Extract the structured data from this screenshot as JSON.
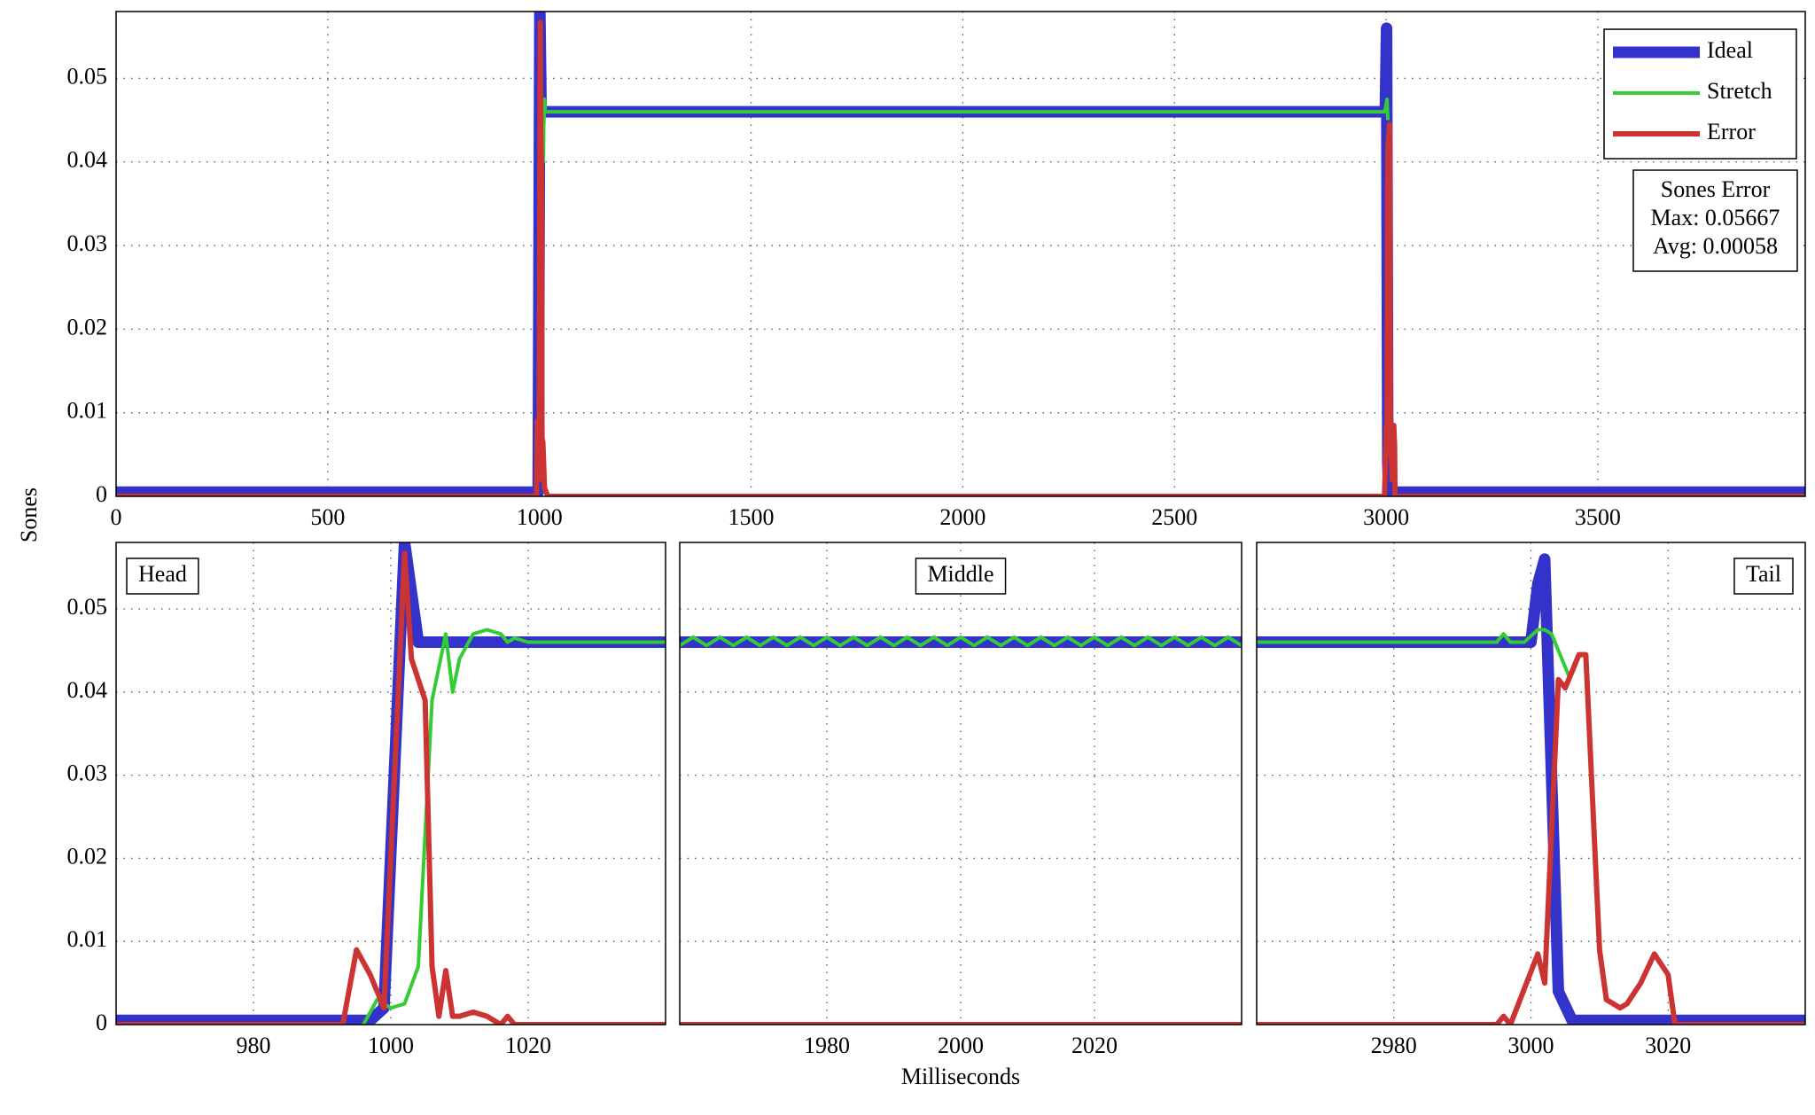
{
  "chart_data": [
    {
      "type": "line",
      "ylabel": "Sones",
      "xlim": [
        0,
        3990
      ],
      "xticks": [
        0,
        500,
        1000,
        1500,
        2000,
        2500,
        3000,
        3500
      ],
      "ylim": [
        0,
        0.058
      ],
      "yticks": [
        0,
        0.01,
        0.02,
        0.03,
        0.04,
        0.05
      ],
      "grid": true,
      "legend": "upper right",
      "annotation": [
        "Sones Error",
        "Max: 0.05667",
        "Avg: 0.00058"
      ],
      "series": [
        {
          "name": "Ideal",
          "color": "#3333cc",
          "line_width": 13,
          "x": [
            0,
            997,
            1001,
            1004,
            1006,
            2998,
            3001,
            3004,
            3006,
            3990
          ],
          "values": [
            0.0005,
            0.0005,
            0.058,
            0.046,
            0.046,
            0.046,
            0.056,
            0.004,
            0.0005,
            0.0005
          ]
        },
        {
          "name": "Stretch",
          "color": "#33cc33",
          "line_width": 4,
          "x": [
            1006,
            1008,
            1009,
            1010,
            1012,
            1014,
            2996,
            2999,
            3002,
            3004
          ],
          "values": [
            0.039,
            0.047,
            0.04,
            0.044,
            0.0475,
            0.046,
            0.046,
            0.0465,
            0.0475,
            0.045
          ]
        },
        {
          "name": "Error",
          "color": "#cc3333",
          "line_width": 6,
          "x": [
            0,
            993,
            995,
            999,
            1002,
            1003,
            1005,
            1006,
            1008,
            1012,
            1020,
            2996,
            3001,
            3002,
            3004,
            3008,
            3010,
            3014,
            3018,
            3020,
            3021,
            3990
          ],
          "values": [
            0,
            0,
            0.009,
            0.002,
            0.0567,
            0.044,
            0.039,
            0.007,
            0.0065,
            0.001,
            0,
            0,
            0.0085,
            0.005,
            0.0415,
            0.0445,
            0.009,
            0.002,
            0.0085,
            0.006,
            0,
            0
          ]
        }
      ]
    },
    {
      "type": "line",
      "title": "Head",
      "xlim": [
        960,
        1040
      ],
      "xticks": [
        980,
        1000,
        1020
      ],
      "ylim": [
        0,
        0.058
      ],
      "yticks": [
        0,
        0.01,
        0.02,
        0.03,
        0.04,
        0.05
      ],
      "grid": true,
      "ytick_labels": true,
      "series": [
        {
          "color": "#3333cc",
          "line_width": 13,
          "x": [
            960,
            997,
            999,
            1002,
            1004,
            1040
          ],
          "values": [
            0.0005,
            0.0005,
            0.002,
            0.058,
            0.046,
            0.046
          ]
        },
        {
          "color": "#33cc33",
          "line_width": 4,
          "x": [
            996,
            998,
            1000,
            1002,
            1004,
            1006,
            1008,
            1009,
            1010,
            1012,
            1014,
            1016,
            1017,
            1018,
            1020,
            1040
          ],
          "values": [
            0,
            0.003,
            0.002,
            0.0025,
            0.007,
            0.039,
            0.047,
            0.04,
            0.044,
            0.047,
            0.0475,
            0.047,
            0.046,
            0.0465,
            0.046,
            0.046
          ]
        },
        {
          "color": "#cc3333",
          "line_width": 6,
          "x": [
            960,
            993,
            995,
            997,
            999,
            1002,
            1003,
            1005,
            1006,
            1007,
            1008,
            1009,
            1010,
            1012,
            1014,
            1016,
            1017,
            1018,
            1040
          ],
          "values": [
            0,
            0,
            0.009,
            0.006,
            0.002,
            0.0567,
            0.044,
            0.039,
            0.007,
            0.001,
            0.0065,
            0.001,
            0.001,
            0.0015,
            0.001,
            0,
            0.001,
            0,
            0
          ]
        }
      ]
    },
    {
      "type": "line",
      "title": "Middle",
      "xlabel": "Milliseconds",
      "xlim": [
        1958,
        2042
      ],
      "xticks": [
        1980,
        2000,
        2020
      ],
      "ylim": [
        0,
        0.058
      ],
      "yticks": [
        0,
        0.01,
        0.02,
        0.03,
        0.04,
        0.05
      ],
      "grid": true,
      "ytick_labels": false,
      "series": [
        {
          "color": "#3333cc",
          "line_width": 13,
          "x": [
            1958,
            2042
          ],
          "values": [
            0.046,
            0.046
          ]
        },
        {
          "color": "#33cc33",
          "line_width": 4,
          "x": [
            1958,
            1960,
            1962,
            1964,
            1966,
            1968,
            1970,
            1972,
            1974,
            1976,
            1978,
            1980,
            1982,
            1984,
            1986,
            1988,
            1990,
            1992,
            1994,
            1996,
            1998,
            2000,
            2002,
            2004,
            2006,
            2008,
            2010,
            2012,
            2014,
            2016,
            2018,
            2020,
            2022,
            2024,
            2026,
            2028,
            2030,
            2032,
            2034,
            2036,
            2038,
            2040,
            2042
          ],
          "values": [
            0.0456,
            0.0466,
            0.0456,
            0.0466,
            0.0456,
            0.0466,
            0.0456,
            0.0466,
            0.0456,
            0.0466,
            0.0456,
            0.0466,
            0.0456,
            0.0466,
            0.0456,
            0.0466,
            0.0456,
            0.0466,
            0.0456,
            0.0466,
            0.0456,
            0.0466,
            0.0456,
            0.0466,
            0.0456,
            0.0466,
            0.0456,
            0.0466,
            0.0456,
            0.0466,
            0.0456,
            0.0466,
            0.0456,
            0.0466,
            0.0456,
            0.0466,
            0.0456,
            0.0466,
            0.0456,
            0.0466,
            0.0456,
            0.0466,
            0.0456
          ]
        },
        {
          "color": "#cc3333",
          "line_width": 6,
          "x": [
            1958,
            2042
          ],
          "values": [
            0,
            0
          ]
        }
      ]
    },
    {
      "type": "line",
      "title": "Tail",
      "xlim": [
        2960,
        3040
      ],
      "xticks": [
        2980,
        3000,
        3020
      ],
      "ylim": [
        0,
        0.058
      ],
      "yticks": [
        0,
        0.01,
        0.02,
        0.03,
        0.04,
        0.05
      ],
      "grid": true,
      "ytick_labels": false,
      "series": [
        {
          "color": "#3333cc",
          "line_width": 13,
          "x": [
            2960,
            3000,
            3001,
            3002,
            3004,
            3006,
            3040
          ],
          "values": [
            0.046,
            0.046,
            0.053,
            0.056,
            0.004,
            0.0005,
            0.0005
          ]
        },
        {
          "color": "#33cc33",
          "line_width": 4,
          "x": [
            2960,
            2995,
            2996,
            2997,
            2999,
            3001,
            3002,
            3003,
            3004,
            3005.5
          ],
          "values": [
            0.046,
            0.046,
            0.047,
            0.046,
            0.046,
            0.0475,
            0.0475,
            0.047,
            0.045,
            0.042
          ]
        },
        {
          "color": "#cc3333",
          "line_width": 6,
          "x": [
            2960,
            2995,
            2996,
            2997,
            3001,
            3002,
            3004,
            3005,
            3007,
            3008,
            3010,
            3011,
            3013,
            3014,
            3016,
            3018,
            3020,
            3021,
            3040
          ],
          "values": [
            0,
            0,
            0.001,
            0,
            0.0085,
            0.005,
            0.0415,
            0.0405,
            0.0445,
            0.0445,
            0.009,
            0.003,
            0.002,
            0.0025,
            0.005,
            0.0085,
            0.006,
            0,
            0
          ]
        }
      ]
    }
  ]
}
